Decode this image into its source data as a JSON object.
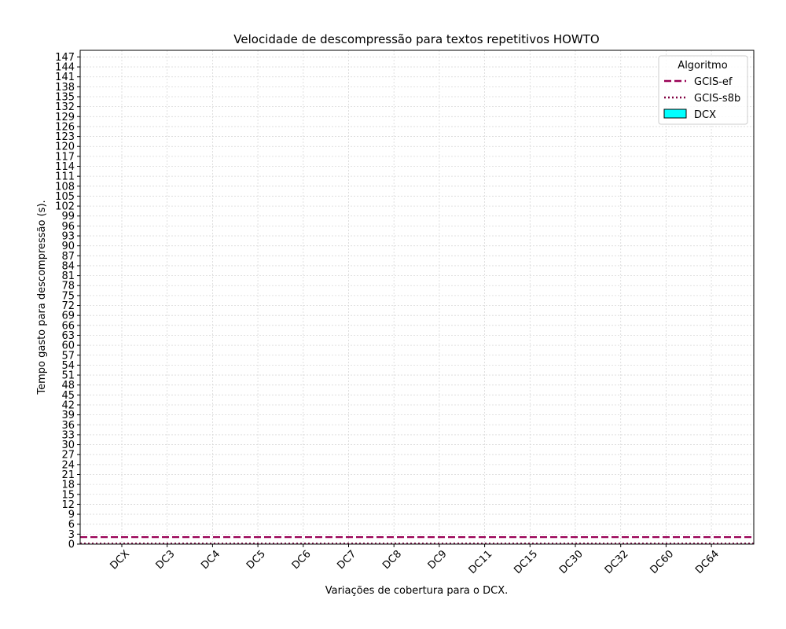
{
  "chart_data": {
    "type": "bar",
    "title": "Velocidade de descompressão para textos repetitivos HOWTO",
    "xlabel": "Variações de cobertura para o DCX.",
    "ylabel": "Tempo gasto para descompressão (s).",
    "categories": [
      "DCX",
      "DC3",
      "DC4",
      "DC5",
      "DC6",
      "DC7",
      "DC8",
      "DC9",
      "DC11",
      "DC15",
      "DC30",
      "DC32",
      "DC60",
      "DC64"
    ],
    "series": [
      {
        "name": "DCX",
        "values": [
          0,
          0,
          0,
          0,
          0,
          0,
          0,
          0,
          0,
          0,
          0,
          0,
          0,
          0
        ],
        "color": "#00ffff"
      }
    ],
    "reference_lines": [
      {
        "name": "GCIS-ef",
        "value": 2.1,
        "style": "dashed",
        "color": "#990055"
      },
      {
        "name": "GCIS-s8b",
        "value": 0.15,
        "style": "dotted",
        "color": "#800040"
      }
    ],
    "legend": {
      "title": "Algoritmo",
      "placement": "top-right"
    },
    "ylim": [
      0,
      149
    ],
    "yticks": [
      0,
      3,
      6,
      9,
      12,
      15,
      18,
      21,
      24,
      27,
      30,
      33,
      36,
      39,
      42,
      45,
      48,
      51,
      54,
      57,
      60,
      63,
      66,
      69,
      72,
      75,
      78,
      81,
      84,
      87,
      90,
      93,
      96,
      99,
      102,
      105,
      108,
      111,
      114,
      117,
      120,
      123,
      126,
      129,
      132,
      135,
      138,
      141,
      144,
      147
    ],
    "grid": true
  }
}
